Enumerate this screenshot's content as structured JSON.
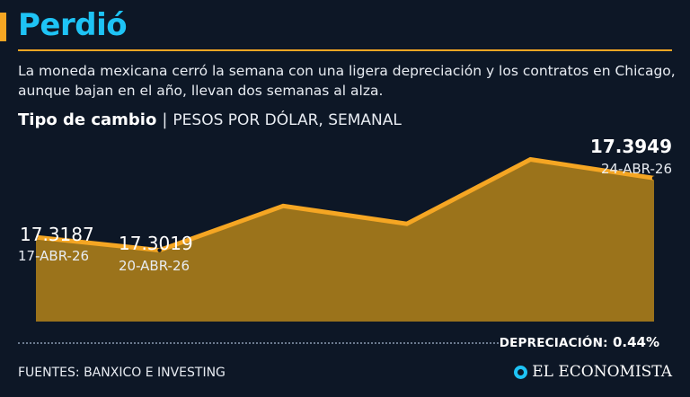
{
  "header": {
    "title": "Perdió",
    "description": "La moneda mexicana cerró la semana con una ligera depreciación y los contratos en Chicago, aunque bajan en el año, llevan dos semanas al alza."
  },
  "chart_header": {
    "label": "Tipo de cambio",
    "separator": "|",
    "subtitle": "PESOS POR DÓLAR, SEMANAL"
  },
  "chart_data": {
    "type": "area",
    "title": "Tipo de cambio",
    "subtitle": "PESOS POR DÓLAR, SEMANAL",
    "series": [
      {
        "values": [
          17.3187,
          17.3019,
          17.359,
          17.336,
          17.419,
          17.3949
        ]
      }
    ],
    "x": [
      "17-ABR-26",
      "20-ABR-26",
      "",
      "",
      "",
      "24-ABR-26"
    ],
    "annotations": [
      {
        "index": 0,
        "value": "17.3187",
        "date": "17-ABR-26"
      },
      {
        "index": 1,
        "value": "17.3019",
        "date": "20-ABR-26"
      },
      {
        "index": 5,
        "value": "17.3949",
        "date": "24-ABR-26"
      }
    ],
    "ylim": [
      17.21,
      17.43
    ],
    "grid": false,
    "colors": {
      "fill": "#9b731b",
      "line": "#f5a623",
      "point": "#0d1726"
    }
  },
  "footer": {
    "sources": "FUENTES: BANXICO E INVESTING",
    "depreciation_label": "DEPRECIACIÓN:",
    "depreciation_value": "0.44%",
    "logo_text": "EL ECONOMISTA"
  },
  "colors": {
    "background": "#0d1726",
    "headline": "#1ec3f5",
    "accent": "#f5a623"
  }
}
